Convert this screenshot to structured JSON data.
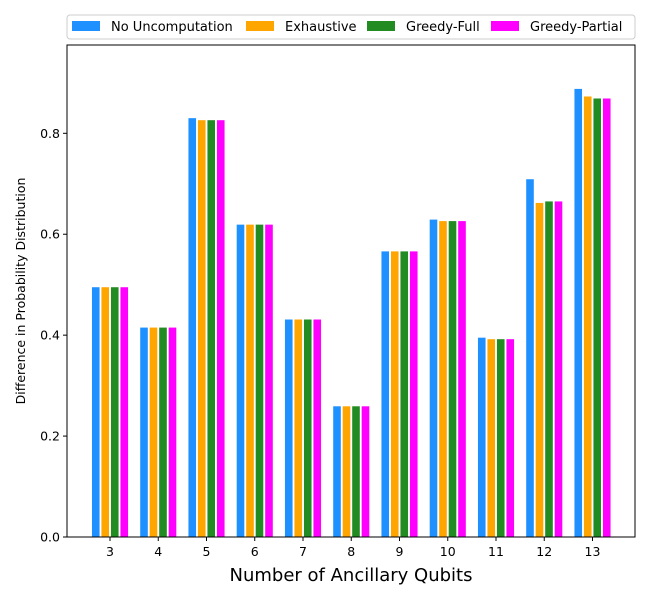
{
  "chart_data": {
    "type": "bar",
    "title": "",
    "xlabel": "Number of Ancillary Qubits",
    "ylabel": "Difference in Probability Distribution",
    "categories": [
      "3",
      "4",
      "5",
      "6",
      "7",
      "8",
      "9",
      "10",
      "11",
      "12",
      "13"
    ],
    "ylim": [
      0,
      0.975
    ],
    "yticks": [
      "0.0",
      "0.2",
      "0.4",
      "0.6",
      "0.8"
    ],
    "grid": false,
    "legend_position": "top",
    "series": [
      {
        "name": "No Uncomputation",
        "color": "#1e90ff",
        "values": [
          0.495,
          0.415,
          0.83,
          0.619,
          0.431,
          0.259,
          0.566,
          0.629,
          0.395,
          0.709,
          0.888
        ]
      },
      {
        "name": "Exhaustive",
        "color": "#ffa500",
        "values": [
          0.495,
          0.415,
          0.826,
          0.619,
          0.431,
          0.259,
          0.566,
          0.626,
          0.392,
          0.662,
          0.873
        ]
      },
      {
        "name": "Greedy-Full",
        "color": "#228b22",
        "values": [
          0.495,
          0.415,
          0.826,
          0.619,
          0.431,
          0.259,
          0.566,
          0.626,
          0.392,
          0.665,
          0.869
        ]
      },
      {
        "name": "Greedy-Partial",
        "color": "#ff00ff",
        "values": [
          0.495,
          0.415,
          0.826,
          0.619,
          0.431,
          0.259,
          0.566,
          0.626,
          0.392,
          0.665,
          0.869
        ]
      }
    ]
  }
}
